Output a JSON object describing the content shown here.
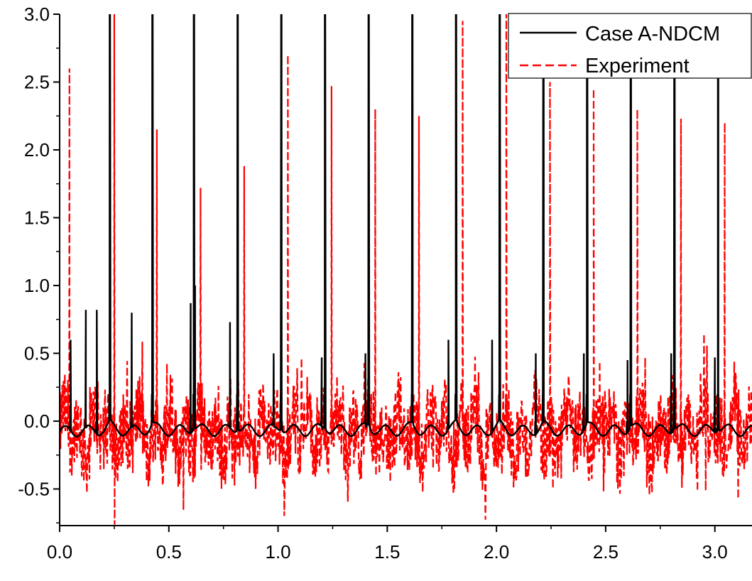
{
  "chart_data": {
    "type": "line",
    "title": "",
    "xlabel": "",
    "ylabel": "",
    "xlim": [
      0.0,
      3.17
    ],
    "ylim": [
      -0.77,
      3.0
    ],
    "x_ticks": [
      0.0,
      0.5,
      1.0,
      1.5,
      2.0,
      2.5,
      3.0
    ],
    "x_tick_labels": [
      "0.0",
      "0.5",
      "1.0",
      "1.5",
      "2.0",
      "2.5",
      "3.0"
    ],
    "y_ticks": [
      -0.5,
      0.0,
      0.5,
      1.0,
      1.5,
      2.0,
      2.5,
      3.0
    ],
    "y_tick_labels": [
      "-0.5",
      "0.0",
      "0.5",
      "1.0",
      "1.5",
      "2.0",
      "2.5",
      "3.0"
    ],
    "grid": false,
    "legend_position": "top-right",
    "series": [
      {
        "name": "Case A-NDCM",
        "color": "#000000",
        "style": "solid",
        "peaks": [
          0.23,
          0.425,
          0.615,
          0.815,
          1.015,
          1.215,
          1.415,
          1.615,
          1.815,
          2.015,
          2.215,
          2.415,
          2.615,
          2.815,
          3.015
        ],
        "peak_value": 3.0,
        "secondary_peaks": [
          [
            0.05,
            0.6
          ],
          [
            0.12,
            0.82
          ],
          [
            0.17,
            0.82
          ],
          [
            0.33,
            0.8
          ],
          [
            0.6,
            0.87
          ],
          [
            0.62,
            1.0
          ],
          [
            0.78,
            0.73
          ],
          [
            0.98,
            0.5
          ],
          [
            1.2,
            0.47
          ],
          [
            1.4,
            0.5
          ],
          [
            1.78,
            0.6
          ],
          [
            1.98,
            0.6
          ],
          [
            2.18,
            0.5
          ],
          [
            2.4,
            0.5
          ],
          [
            2.6,
            0.45
          ],
          [
            2.8,
            0.5
          ],
          [
            3.0,
            0.47
          ]
        ],
        "baseline": -0.08
      },
      {
        "name": "Experiment",
        "color": "#ff0000",
        "style": "dashed",
        "peaks": [
          [
            0.045,
            2.6
          ],
          [
            0.25,
            3.0
          ],
          [
            0.445,
            2.15
          ],
          [
            0.645,
            1.72
          ],
          [
            0.845,
            1.88
          ],
          [
            1.045,
            2.7
          ],
          [
            1.245,
            2.47
          ],
          [
            1.445,
            2.3
          ],
          [
            1.645,
            2.25
          ],
          [
            1.845,
            2.95
          ],
          [
            2.045,
            3.0
          ],
          [
            2.245,
            2.5
          ],
          [
            2.445,
            2.45
          ],
          [
            2.645,
            2.3
          ],
          [
            2.845,
            2.23
          ],
          [
            3.045,
            2.2
          ]
        ],
        "noise_range": [
          -0.77,
          0.7
        ]
      }
    ]
  }
}
